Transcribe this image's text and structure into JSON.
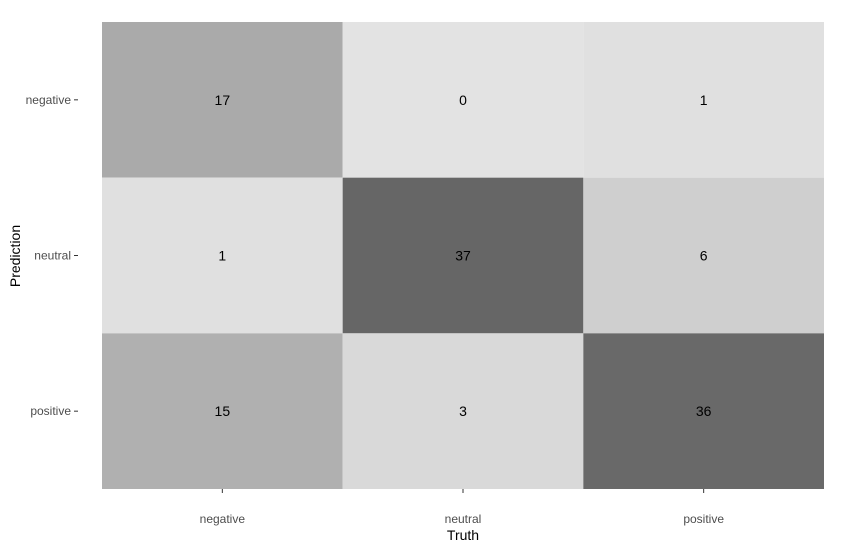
{
  "chart_data": {
    "type": "heatmap",
    "title": "",
    "xlabel": "Truth",
    "ylabel": "Prediction",
    "x_categories": [
      "negative",
      "neutral",
      "positive"
    ],
    "y_categories": [
      "negative",
      "neutral",
      "positive"
    ],
    "values": [
      [
        17,
        0,
        1
      ],
      [
        1,
        37,
        6
      ],
      [
        15,
        3,
        36
      ]
    ],
    "color_low": "#e3e3e3",
    "color_high": "#666666",
    "grid": false,
    "legend": "none"
  }
}
